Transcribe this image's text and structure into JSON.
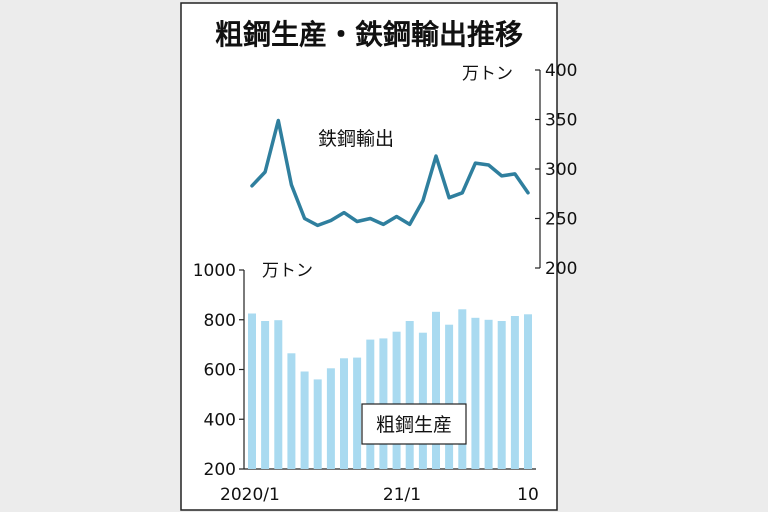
{
  "title": "粗鋼生産・鉄鋼輸出推移",
  "chart_data": [
    {
      "type": "line",
      "series": [
        {
          "name": "鉄鋼輸出",
          "values": [
            283,
            297,
            349,
            284,
            250,
            243,
            248,
            256,
            247,
            250,
            244,
            252,
            244,
            268,
            313,
            271,
            276,
            306,
            304,
            293,
            295,
            276
          ]
        }
      ],
      "ylim": [
        200,
        400
      ],
      "yticks": [
        "400",
        "350",
        "300",
        "250",
        "200"
      ],
      "unit": "万トン"
    },
    {
      "type": "bar",
      "series": [
        {
          "name": "粗鋼生産",
          "values": [
            825,
            795,
            798,
            665,
            592,
            560,
            605,
            645,
            648,
            720,
            725,
            752,
            795,
            748,
            832,
            780,
            842,
            808,
            800,
            795,
            815,
            822
          ]
        }
      ],
      "ylim": [
        200,
        1000
      ],
      "yticks": [
        "1000",
        "800",
        "600",
        "400",
        "200"
      ],
      "unit": "万トン"
    }
  ],
  "x_labels": [
    "2020/1",
    "21/1",
    "10"
  ]
}
